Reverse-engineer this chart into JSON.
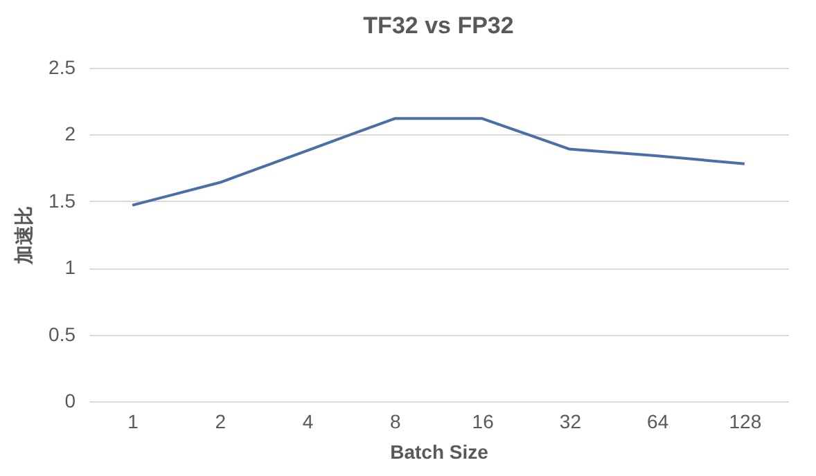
{
  "chart_data": {
    "type": "line",
    "title": "TF32 vs FP32",
    "xlabel": "Batch Size",
    "ylabel": "加速比",
    "categories": [
      "1",
      "2",
      "4",
      "8",
      "16",
      "32",
      "64",
      "128"
    ],
    "series": [
      {
        "color": "#4a6ea8",
        "values": [
          1.47,
          1.64,
          1.88,
          2.12,
          2.12,
          1.89,
          1.84,
          1.78
        ]
      }
    ],
    "ylim": [
      0,
      2.5
    ],
    "yticks": [
      0,
      0.5,
      1,
      1.5,
      2,
      2.5
    ],
    "grid": "y",
    "marker": "none",
    "line_style": "solid"
  }
}
